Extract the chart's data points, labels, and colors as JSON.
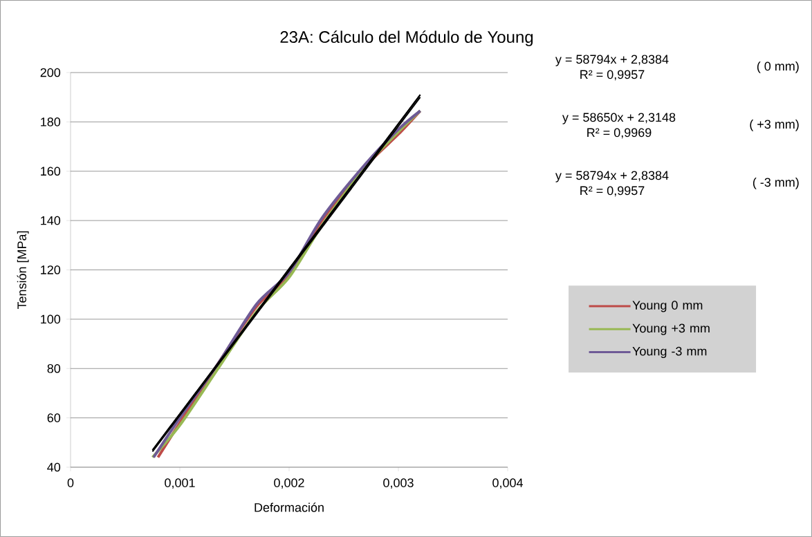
{
  "chart_data": {
    "type": "line",
    "title": "23A: Cálculo del Módulo de Young",
    "xlabel": "Deformación",
    "ylabel": "Tensión [MPa]",
    "xlim": [
      0,
      0.004
    ],
    "ylim": [
      40,
      200
    ],
    "xticks": [
      0,
      {
        "value": 0.001,
        "label": "0,001"
      },
      {
        "value": 0.002,
        "label": "0,002"
      },
      {
        "value": 0.003,
        "label": "0,003"
      },
      {
        "value": 0.004,
        "label": "0,004"
      }
    ],
    "yticks": [
      40,
      60,
      80,
      100,
      120,
      140,
      160,
      180,
      200
    ],
    "grid": "y",
    "legend": "right",
    "marker": "none",
    "x": [
      0.00076,
      0.001,
      0.00135,
      0.0017,
      0.002,
      0.0023,
      0.0027,
      0.003,
      0.0032
    ],
    "series": [
      {
        "name": "Young 0 mm",
        "color": "#be4b48",
        "x": [
          0.0008,
          0.001,
          0.00135,
          0.0017,
          0.002,
          0.0023,
          0.0027,
          0.003,
          0.0032
        ],
        "values": [
          44,
          58,
          82,
          105,
          118,
          140,
          162,
          175,
          184.5
        ]
      },
      {
        "name": "Young +3 mm",
        "color": "#98b954",
        "x": [
          0.00075,
          0.001,
          0.00135,
          0.0017,
          0.002,
          0.0023,
          0.0027,
          0.003,
          0.0032
        ],
        "values": [
          44,
          57,
          80,
          103,
          117,
          138,
          162,
          176,
          184.5
        ]
      },
      {
        "name": "Young -3 mm",
        "color": "#6e5a96",
        "values": [
          44,
          60,
          82,
          106,
          119,
          141,
          163,
          177,
          184.5
        ]
      },
      {
        "type": "line",
        "color": "#000000",
        "x": [
          0.00075,
          0.0032
        ],
        "values": [
          46.9,
          191.0
        ]
      },
      {
        "type": "line",
        "color": "#000000",
        "x": [
          0.00075,
          0.0032
        ],
        "values": [
          46.3,
          190.0
        ]
      },
      {
        "type": "line",
        "color": "#000000",
        "x": [
          0.00075,
          0.0032
        ],
        "values": [
          46.9,
          191.0
        ]
      }
    ],
    "annotations": [
      "y = 58794x + 2,8384",
      "R² = 0,9957",
      "( 0 mm)",
      "y = 58650x + 2,3148",
      "R² = 0,9969",
      "( +3 mm)",
      "y = 58794x + 2,8384",
      "R² = 0,9957",
      "( -3 mm)"
    ]
  }
}
